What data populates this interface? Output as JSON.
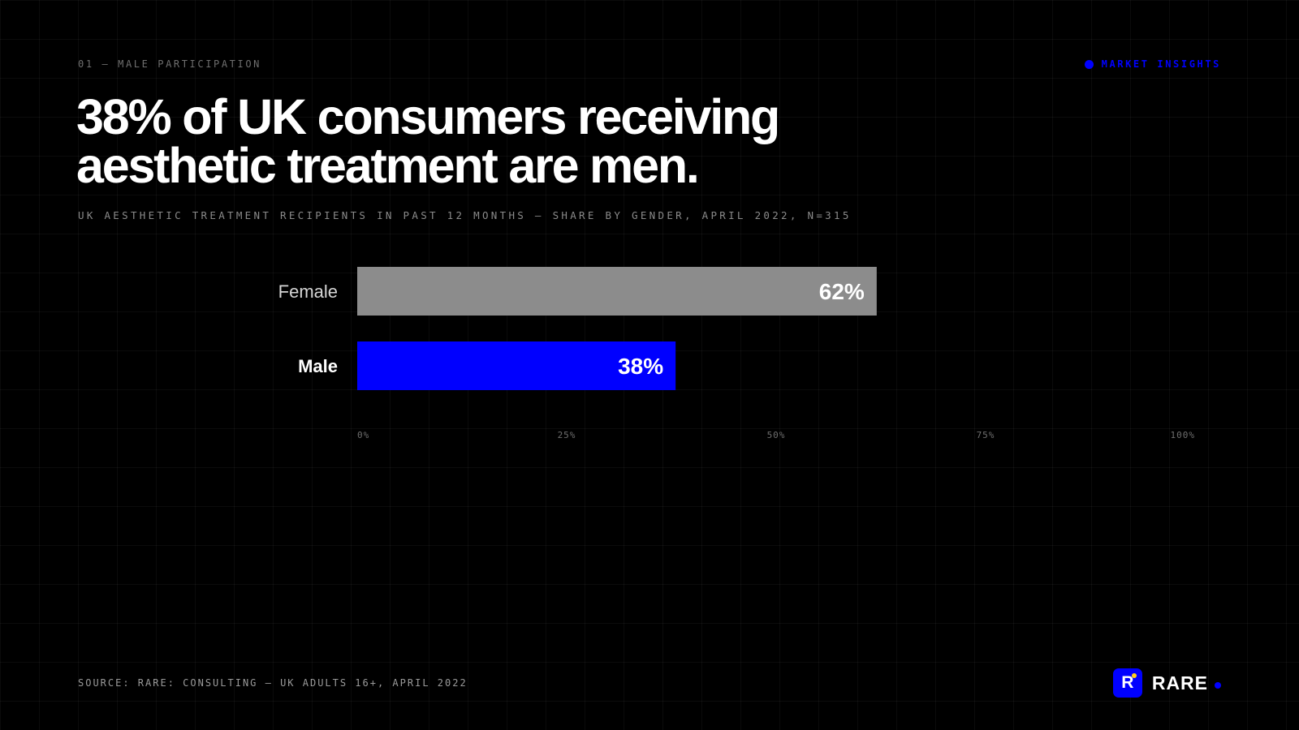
{
  "colors": {
    "accent": "#0000ff",
    "female_bar": "#8c8c8c",
    "background": "#000000"
  },
  "header": {
    "eyebrow": "01 — MALE PARTICIPATION",
    "tag": "MARKET INSIGHTS"
  },
  "headline": {
    "line1": "38% of UK consumers receiving",
    "line2": "aesthetic treatment are men."
  },
  "subtitle": "UK AESTHETIC TREATMENT RECIPIENTS IN PAST 12 MONTHS — SHARE BY GENDER, APRIL 2022, N=315",
  "footer": {
    "source": "SOURCE: RARE: CONSULTING — UK ADULTS 16+, APRIL 2022",
    "brand_letter": "R",
    "brand_name": "RARE"
  },
  "icons": {
    "tag_marker": "dot-icon",
    "brand_logo": "rare-logo-icon",
    "brand_accent": "dot-icon"
  },
  "chart_data": {
    "type": "bar",
    "orientation": "horizontal",
    "categories": [
      "Female",
      "Male"
    ],
    "values": [
      62,
      38
    ],
    "data_labels": [
      "62%",
      "38%"
    ],
    "bar_colors": [
      "#8c8c8c",
      "#0000ff"
    ],
    "highlight": "Male",
    "xlim": [
      0,
      100
    ],
    "xticks": [
      0,
      25,
      50,
      75,
      100
    ],
    "xtick_labels": [
      "0%",
      "25%",
      "50%",
      "75%",
      "100%"
    ],
    "grid": true,
    "title": "",
    "xlabel": "",
    "ylabel": ""
  }
}
